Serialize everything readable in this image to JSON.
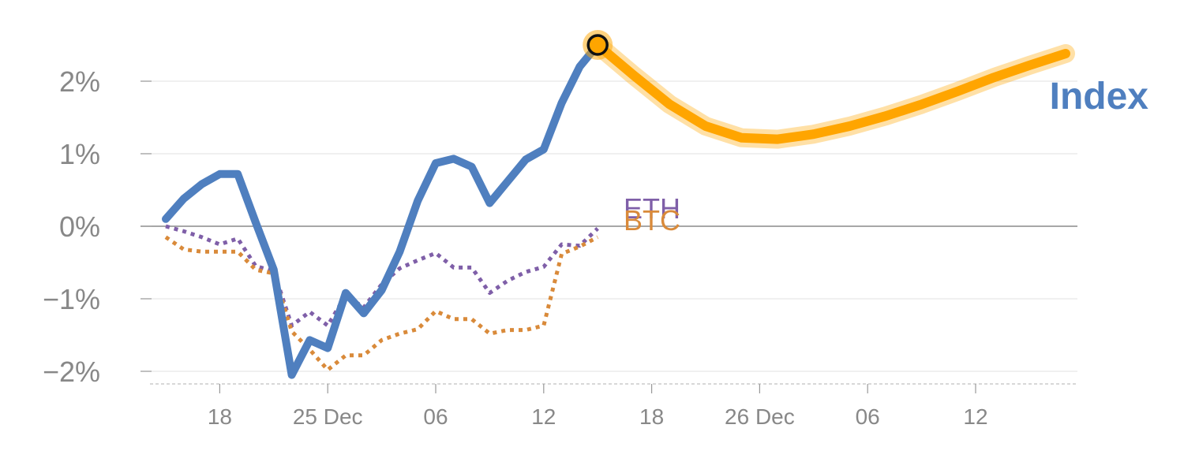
{
  "chart_data": {
    "type": "line",
    "x_ticks": [
      "18",
      "25 Dec",
      "06",
      "12",
      "18",
      "26 Dec",
      "06",
      "12"
    ],
    "y_ticks": [
      "2%",
      "1%",
      "0%",
      "−1%",
      "−2%"
    ],
    "ylim": [
      -2.15,
      2.6
    ],
    "grid": true,
    "series": [
      {
        "name": "Index",
        "color": "#4f7fbf",
        "style": "solid",
        "points": [
          [
            0,
            0.1
          ],
          [
            1,
            0.38
          ],
          [
            2,
            0.58
          ],
          [
            3,
            0.72
          ],
          [
            4,
            0.72
          ],
          [
            5,
            0.05
          ],
          [
            6,
            -0.6
          ],
          [
            7,
            -2.05
          ],
          [
            8,
            -1.57
          ],
          [
            9,
            -1.68
          ],
          [
            10,
            -0.92
          ],
          [
            11,
            -1.2
          ],
          [
            12,
            -0.88
          ],
          [
            13,
            -0.35
          ],
          [
            14,
            0.35
          ],
          [
            15,
            0.87
          ],
          [
            16,
            0.93
          ],
          [
            17,
            0.82
          ],
          [
            18,
            0.32
          ],
          [
            19,
            0.62
          ],
          [
            20,
            0.92
          ],
          [
            21,
            1.06
          ],
          [
            22,
            1.7
          ],
          [
            23,
            2.2
          ],
          [
            24,
            2.5
          ]
        ]
      },
      {
        "name": "ETH",
        "color": "#7f5fa8",
        "style": "dotted",
        "points": [
          [
            0,
            0.0
          ],
          [
            1,
            -0.07
          ],
          [
            2,
            -0.15
          ],
          [
            3,
            -0.25
          ],
          [
            4,
            -0.17
          ],
          [
            5,
            -0.55
          ],
          [
            6,
            -0.62
          ],
          [
            7,
            -1.37
          ],
          [
            8,
            -1.18
          ],
          [
            9,
            -1.37
          ],
          [
            10,
            -0.95
          ],
          [
            11,
            -1.12
          ],
          [
            12,
            -0.8
          ],
          [
            13,
            -0.58
          ],
          [
            14,
            -0.47
          ],
          [
            15,
            -0.37
          ],
          [
            16,
            -0.57
          ],
          [
            17,
            -0.57
          ],
          [
            18,
            -0.92
          ],
          [
            19,
            -0.75
          ],
          [
            20,
            -0.63
          ],
          [
            21,
            -0.56
          ],
          [
            22,
            -0.25
          ],
          [
            23,
            -0.27
          ],
          [
            24,
            -0.03
          ]
        ]
      },
      {
        "name": "BTC",
        "color": "#d98a3a",
        "style": "dotted",
        "points": [
          [
            0,
            -0.15
          ],
          [
            1,
            -0.32
          ],
          [
            2,
            -0.35
          ],
          [
            3,
            -0.35
          ],
          [
            4,
            -0.35
          ],
          [
            5,
            -0.6
          ],
          [
            6,
            -0.65
          ],
          [
            7,
            -1.45
          ],
          [
            8,
            -1.7
          ],
          [
            9,
            -1.98
          ],
          [
            10,
            -1.78
          ],
          [
            11,
            -1.78
          ],
          [
            12,
            -1.57
          ],
          [
            13,
            -1.48
          ],
          [
            14,
            -1.42
          ],
          [
            15,
            -1.17
          ],
          [
            16,
            -1.28
          ],
          [
            17,
            -1.28
          ],
          [
            18,
            -1.48
          ],
          [
            19,
            -1.43
          ],
          [
            20,
            -1.43
          ],
          [
            21,
            -1.37
          ],
          [
            22,
            -0.38
          ],
          [
            23,
            -0.28
          ],
          [
            24,
            -0.15
          ]
        ]
      }
    ],
    "forecast": {
      "color": "#ffa500",
      "points": [
        [
          24,
          2.5
        ],
        [
          26,
          2.08
        ],
        [
          28,
          1.68
        ],
        [
          30,
          1.38
        ],
        [
          32,
          1.22
        ],
        [
          34,
          1.2
        ],
        [
          36,
          1.27
        ],
        [
          38,
          1.38
        ],
        [
          40,
          1.52
        ],
        [
          42,
          1.68
        ],
        [
          44,
          1.86
        ],
        [
          46,
          2.05
        ],
        [
          48,
          2.22
        ],
        [
          50,
          2.38
        ]
      ]
    }
  }
}
